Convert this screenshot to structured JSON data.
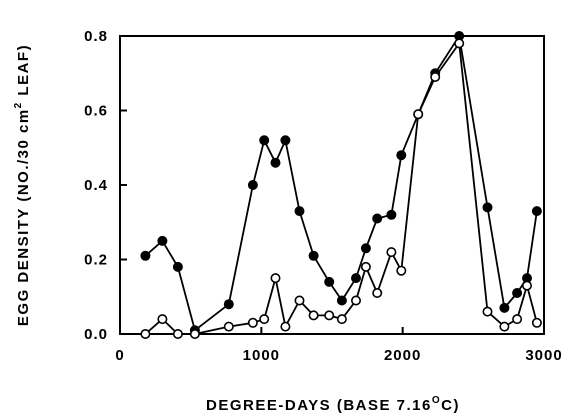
{
  "chart_data": {
    "type": "line",
    "xlabel": "DEGREE-DAYS (BASE 7.16°C)",
    "ylabel": "EGG DENSITY (NO./30 cm² LEAF)",
    "xlabel_parts": {
      "pre": "DEGREE-DAYS (BASE 7.16",
      "sup": "O",
      "post": "C)"
    },
    "ylabel_parts": {
      "pre": "EGG DENSITY (NO./30 cm",
      "sup": "2",
      "post": " LEAF)"
    },
    "xlim": [
      0,
      3000
    ],
    "ylim": [
      0,
      0.8
    ],
    "xticks": [
      0,
      1000,
      2000,
      3000
    ],
    "xtick_labels": [
      "0",
      "1000",
      "2000",
      "3000"
    ],
    "yticks": [
      0,
      0.2,
      0.4,
      0.6,
      0.8
    ],
    "ytick_labels": [
      "0.0",
      "0.2",
      "0.4",
      "0.6",
      "0.8"
    ],
    "grid": false,
    "series": [
      {
        "marker": "filled-circle",
        "color": "#000000",
        "x": [
          180,
          300,
          410,
          530,
          770,
          940,
          1020,
          1100,
          1170,
          1270,
          1370,
          1480,
          1570,
          1670,
          1740,
          1820,
          1920,
          1990,
          2110,
          2230,
          2400,
          2600,
          2720,
          2810,
          2880,
          2950
        ],
        "y": [
          0.21,
          0.25,
          0.18,
          0.01,
          0.08,
          0.4,
          0.52,
          0.46,
          0.52,
          0.33,
          0.21,
          0.14,
          0.09,
          0.15,
          0.23,
          0.31,
          0.32,
          0.48,
          0.59,
          0.7,
          0.8,
          0.34,
          0.07,
          0.11,
          0.15,
          0.33
        ]
      },
      {
        "marker": "open-circle",
        "color": "#000000",
        "x": [
          180,
          300,
          410,
          530,
          770,
          940,
          1020,
          1100,
          1170,
          1270,
          1370,
          1480,
          1570,
          1670,
          1740,
          1820,
          1920,
          1990,
          2110,
          2230,
          2400,
          2600,
          2720,
          2810,
          2880,
          2950
        ],
        "y": [
          0.0,
          0.04,
          0.0,
          0.0,
          0.02,
          0.03,
          0.04,
          0.15,
          0.02,
          0.09,
          0.05,
          0.05,
          0.04,
          0.09,
          0.18,
          0.11,
          0.22,
          0.17,
          0.59,
          0.69,
          0.78,
          0.06,
          0.02,
          0.04,
          0.13,
          0.03
        ]
      }
    ]
  }
}
